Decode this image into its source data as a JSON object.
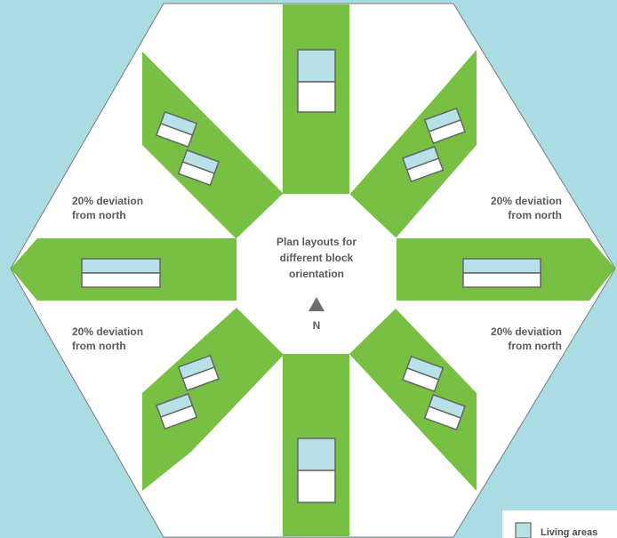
{
  "center": {
    "title_lines": [
      "Plan layouts for",
      "different block",
      "orientation"
    ],
    "north_label": "N"
  },
  "deviation_labels": [
    {
      "lines": [
        "20% deviation",
        "from north"
      ]
    },
    {
      "lines": [
        "20% deviation",
        "from north"
      ]
    },
    {
      "lines": [
        "20% deviation",
        "from north"
      ]
    },
    {
      "lines": [
        "20% deviation",
        "from north"
      ]
    }
  ],
  "legend": {
    "living_areas_label": "Living areas"
  },
  "colors": {
    "background": "#acdce3",
    "green": "#77c043",
    "living_area": "#b7e1e6",
    "outline": "#666666",
    "north_arrow": "#6e6e6e"
  }
}
